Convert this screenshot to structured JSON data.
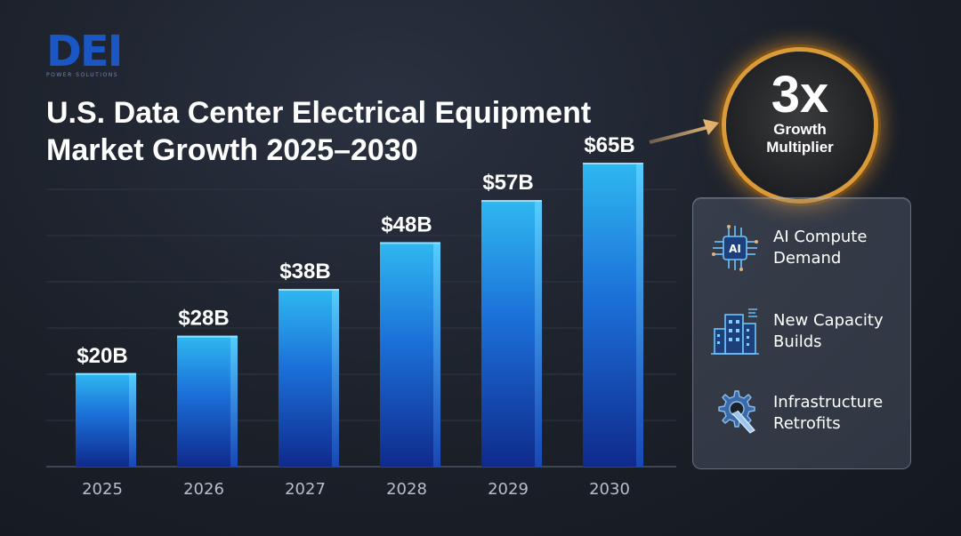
{
  "logo": {
    "mark": "DEI",
    "subtitle": "POWER SOLUTIONS"
  },
  "title_lines": [
    "U.S. Data Center Electrical Equipment",
    "Market Growth 2025–2030"
  ],
  "badge": {
    "big": "3x",
    "line1": "Growth",
    "line2": "Multiplier"
  },
  "drivers": [
    {
      "line1": "AI Compute",
      "line2": "Demand",
      "icon": "ai-chip-icon"
    },
    {
      "line1": "New Capacity",
      "line2": "Builds",
      "icon": "building-icon"
    },
    {
      "line1": "Infrastructure",
      "line2": "Retrofits",
      "icon": "gear-wrench-icon"
    }
  ],
  "colors": {
    "bar_top": "#2fb8f0",
    "bar_bottom": "#0f2f9a",
    "accent_gold": "#d99a3a",
    "logo_blue": "#1a56c4"
  },
  "chart_data": {
    "type": "bar",
    "title": "U.S. Data Center Electrical Equipment Market Growth 2025–2030",
    "categories": [
      "2025",
      "2026",
      "2027",
      "2028",
      "2029",
      "2030"
    ],
    "values": [
      20,
      28,
      38,
      48,
      57,
      65
    ],
    "data_labels": [
      "$20B",
      "$28B",
      "$38B",
      "$48B",
      "$57B",
      "$65B"
    ],
    "unit": "$B",
    "ylim": [
      0,
      70
    ],
    "grid": true,
    "legend": "none"
  }
}
